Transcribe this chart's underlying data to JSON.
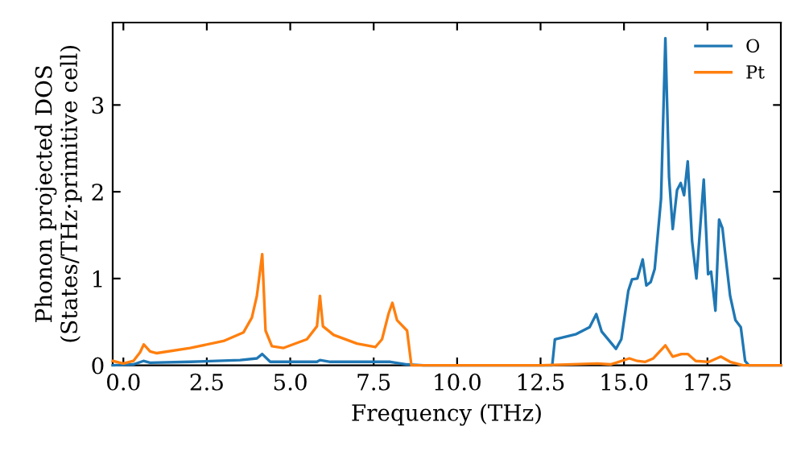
{
  "chart_data": {
    "type": "line",
    "xlabel": "Frequency (THz)",
    "ylabel": "Phonon projected DOS\n(States/THz·primitive cell)",
    "xlim": [
      -0.32,
      19.7
    ],
    "ylim": [
      0,
      3.95
    ],
    "xticks": [
      {
        "value": 0,
        "label": "0.0"
      },
      {
        "value": 2.5,
        "label": "2.5"
      },
      {
        "value": 5,
        "label": "5.0"
      },
      {
        "value": 7.5,
        "label": "7.5"
      },
      {
        "value": 10,
        "label": "10.0"
      },
      {
        "value": 12.5,
        "label": "12.5"
      },
      {
        "value": 15,
        "label": "15.0"
      },
      {
        "value": 17.5,
        "label": "17.5"
      }
    ],
    "yticks": [
      0,
      1,
      2,
      3
    ],
    "legend": "top right",
    "grid": false,
    "series": [
      {
        "name": "O",
        "color": "#1f77b4",
        "x": [
          -0.32,
          0.3,
          0.6,
          0.8,
          2.0,
          3.5,
          4.0,
          4.16,
          4.4,
          5.8,
          5.89,
          6.2,
          8.0,
          8.5,
          9.0,
          12.85,
          12.93,
          13.57,
          13.97,
          14.17,
          14.33,
          14.76,
          14.92,
          15.13,
          15.24,
          15.4,
          15.56,
          15.67,
          15.8,
          15.92,
          16.11,
          16.24,
          16.35,
          16.46,
          16.59,
          16.7,
          16.8,
          16.91,
          17.04,
          17.17,
          17.39,
          17.52,
          17.61,
          17.74,
          17.85,
          17.95,
          18.03,
          18.18,
          18.34,
          18.5,
          18.63,
          18.74,
          19.7
        ],
        "values": [
          0,
          0.01,
          0.05,
          0.03,
          0.04,
          0.06,
          0.08,
          0.13,
          0.04,
          0.04,
          0.06,
          0.04,
          0.04,
          0.01,
          0,
          0,
          0.3,
          0.36,
          0.44,
          0.59,
          0.39,
          0.19,
          0.3,
          0.86,
          0.99,
          1.0,
          1.22,
          0.92,
          0.96,
          1.11,
          1.92,
          3.77,
          2.17,
          1.57,
          2.02,
          2.1,
          1.96,
          2.35,
          1.43,
          1.0,
          2.14,
          1.05,
          1.08,
          0.63,
          1.68,
          1.58,
          1.3,
          0.8,
          0.52,
          0.44,
          0.05,
          0,
          0
        ]
      },
      {
        "name": "Pt",
        "color": "#ff7f0e",
        "x": [
          -0.32,
          0.0,
          0.3,
          0.5,
          0.61,
          0.8,
          1.0,
          2.0,
          3.0,
          3.6,
          3.85,
          4.0,
          4.16,
          4.26,
          4.45,
          4.8,
          5.5,
          5.8,
          5.89,
          5.98,
          6.3,
          7.0,
          7.55,
          7.75,
          7.95,
          8.06,
          8.2,
          8.5,
          8.63,
          12.5,
          14.2,
          14.6,
          15.16,
          15.4,
          15.64,
          15.88,
          16.24,
          16.46,
          16.72,
          16.91,
          17.15,
          17.55,
          17.9,
          18.18,
          18.57,
          19.7
        ],
        "values": [
          0.05,
          0.02,
          0.05,
          0.15,
          0.24,
          0.16,
          0.14,
          0.2,
          0.28,
          0.38,
          0.55,
          0.8,
          1.28,
          0.4,
          0.22,
          0.2,
          0.3,
          0.45,
          0.8,
          0.45,
          0.35,
          0.25,
          0.21,
          0.3,
          0.6,
          0.72,
          0.52,
          0.4,
          0,
          0,
          0.02,
          0.01,
          0.08,
          0.05,
          0.04,
          0.08,
          0.23,
          0.1,
          0.13,
          0.13,
          0.05,
          0.04,
          0.1,
          0.04,
          0,
          0
        ]
      }
    ]
  }
}
